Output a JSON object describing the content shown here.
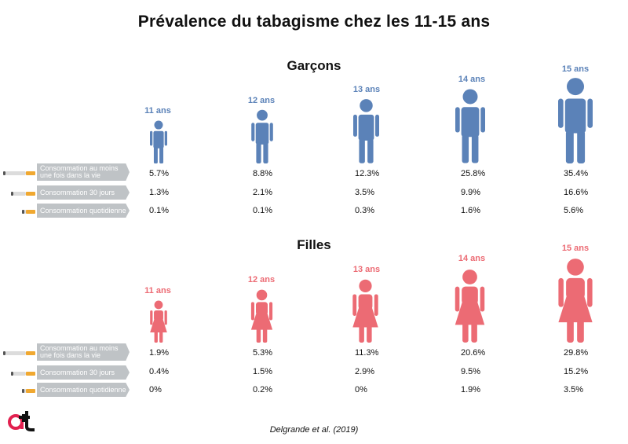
{
  "title": "Prévalence du tabagisme chez les 11-15 ans",
  "source": "Delgrande et al. (2019)",
  "logo_text": "at",
  "colors": {
    "boys": "#5b82b8",
    "girls": "#ec6b74",
    "label_bg": "#bfc3c6",
    "filter": "#f0a830"
  },
  "chart_data": [
    {
      "type": "table",
      "title": "Garçons",
      "categories": [
        "11 ans",
        "12 ans",
        "13 ans",
        "14 ans",
        "15 ans"
      ],
      "series": [
        {
          "name": "Consommation au moins une fois dans la vie",
          "values": [
            "5.7%",
            "8.8%",
            "12.3%",
            "25.8%",
            "35.4%"
          ]
        },
        {
          "name": "Consommation 30 jours",
          "values": [
            "1.3%",
            "2.1%",
            "3.5%",
            "9.9%",
            "16.6%"
          ]
        },
        {
          "name": "Consommation quotidienne",
          "values": [
            "0.1%",
            "0.1%",
            "0.3%",
            "1.6%",
            "5.6%"
          ]
        }
      ]
    },
    {
      "type": "table",
      "title": "Filles",
      "categories": [
        "11 ans",
        "12 ans",
        "13 ans",
        "14 ans",
        "15 ans"
      ],
      "series": [
        {
          "name": "Consommation au moins une fois dans la vie",
          "values": [
            "1.9%",
            "5.3%",
            "11.3%",
            "20.6%",
            "29.8%"
          ]
        },
        {
          "name": "Consommation 30 jours",
          "values": [
            "0.4%",
            "1.5%",
            "2.9%",
            "9.5%",
            "15.2%"
          ]
        },
        {
          "name": "Consommation quotidienne",
          "values": [
            "0%",
            "0.2%",
            "0%",
            "1.9%",
            "3.5%"
          ]
        }
      ]
    }
  ]
}
